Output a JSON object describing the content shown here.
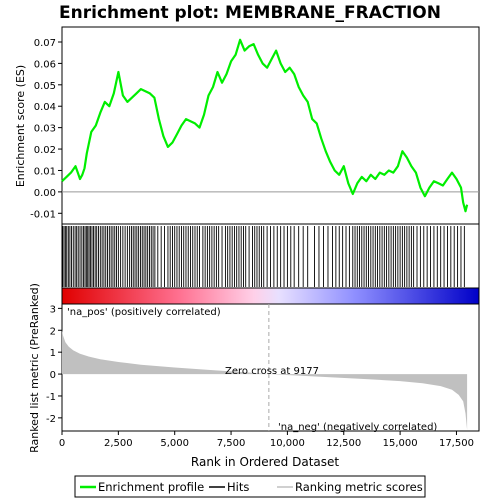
{
  "chart_data": {
    "type": "line",
    "title": "Enrichment plot: MEMBRANE_FRACTION",
    "xlabel": "Rank in Ordered Dataset",
    "xlim": [
      0,
      18500
    ],
    "x_ticks": [
      0,
      2500,
      5000,
      7500,
      10000,
      12500,
      15000,
      17500
    ],
    "x_tick_labels": [
      "0",
      "2,500",
      "5,000",
      "7,500",
      "10,000",
      "12,500",
      "15,000",
      "17,500"
    ],
    "es_panel": {
      "ylabel": "Enrichment score (ES)",
      "ylim": [
        -0.015,
        0.077
      ],
      "y_ticks": [
        -0.01,
        0.0,
        0.01,
        0.02,
        0.03,
        0.04,
        0.05,
        0.06,
        0.07
      ],
      "y_tick_labels": [
        "-0.01",
        "0.00",
        "0.01",
        "0.02",
        "0.03",
        "0.04",
        "0.05",
        "0.06",
        "0.07"
      ],
      "series": [
        {
          "name": "Enrichment profile",
          "color": "#00ee00",
          "x": [
            0,
            200,
            400,
            600,
            700,
            800,
            900,
            1000,
            1100,
            1300,
            1500,
            1700,
            1900,
            2100,
            2300,
            2500,
            2700,
            2900,
            3100,
            3300,
            3500,
            3700,
            3900,
            4100,
            4300,
            4500,
            4700,
            4900,
            5100,
            5300,
            5500,
            5700,
            5900,
            6100,
            6300,
            6500,
            6700,
            6900,
            7100,
            7300,
            7500,
            7700,
            7900,
            8100,
            8300,
            8500,
            8700,
            8900,
            9100,
            9300,
            9500,
            9700,
            9900,
            10100,
            10300,
            10500,
            10700,
            10900,
            11100,
            11300,
            11500,
            11700,
            11900,
            12100,
            12300,
            12500,
            12700,
            12900,
            13100,
            13300,
            13500,
            13700,
            13900,
            14100,
            14300,
            14500,
            14700,
            14900,
            15100,
            15300,
            15500,
            15700,
            15900,
            16100,
            16300,
            16500,
            16700,
            16900,
            17100,
            17300,
            17500,
            17700,
            17800,
            17900,
            17970
          ],
          "y": [
            0.005,
            0.007,
            0.009,
            0.012,
            0.009,
            0.006,
            0.008,
            0.011,
            0.018,
            0.028,
            0.031,
            0.037,
            0.042,
            0.04,
            0.046,
            0.056,
            0.045,
            0.042,
            0.044,
            0.046,
            0.048,
            0.047,
            0.046,
            0.044,
            0.034,
            0.026,
            0.021,
            0.023,
            0.027,
            0.031,
            0.034,
            0.033,
            0.032,
            0.03,
            0.036,
            0.045,
            0.049,
            0.056,
            0.051,
            0.055,
            0.061,
            0.064,
            0.071,
            0.066,
            0.068,
            0.069,
            0.064,
            0.06,
            0.058,
            0.062,
            0.066,
            0.06,
            0.056,
            0.058,
            0.055,
            0.049,
            0.045,
            0.042,
            0.034,
            0.032,
            0.025,
            0.019,
            0.014,
            0.01,
            0.008,
            0.012,
            0.004,
            -0.001,
            0.004,
            0.007,
            0.005,
            0.008,
            0.006,
            0.009,
            0.008,
            0.01,
            0.009,
            0.012,
            0.019,
            0.016,
            0.012,
            0.009,
            0.002,
            -0.002,
            0.002,
            0.005,
            0.004,
            0.003,
            0.006,
            0.009,
            0.006,
            0.002,
            -0.005,
            -0.009,
            -0.006
          ]
        }
      ]
    },
    "hits_panel": {
      "hit_ranks": [
        30,
        90,
        150,
        210,
        280,
        350,
        420,
        500,
        580,
        650,
        720,
        800,
        880,
        950,
        1020,
        1080,
        1140,
        1200,
        1260,
        1330,
        1400,
        1470,
        1540,
        1620,
        1700,
        1780,
        1860,
        1940,
        2020,
        2100,
        2180,
        2260,
        2340,
        2420,
        2500,
        2600,
        2700,
        2800,
        2900,
        3000,
        3080,
        3160,
        3240,
        3320,
        3400,
        3480,
        3560,
        3640,
        3720,
        3800,
        3880,
        3960,
        4040,
        4120,
        4250,
        4400,
        4550,
        4700,
        4800,
        4900,
        5000,
        5100,
        5200,
        5300,
        5400,
        5500,
        5600,
        5700,
        5800,
        5900,
        6000,
        6100,
        6250,
        6350,
        6450,
        6550,
        6650,
        6750,
        6850,
        6950,
        7100,
        7250,
        7350,
        7450,
        7550,
        7650,
        7750,
        7850,
        7950,
        8050,
        8150,
        8300,
        8450,
        8550,
        8650,
        8750,
        8850,
        8950,
        9100,
        9250,
        9400,
        9550,
        9700,
        9850,
        10000,
        10150,
        10300,
        10500,
        10700,
        10900,
        11200,
        11400,
        11600,
        11800,
        12000,
        12150,
        12300,
        12450,
        12600,
        12750,
        12900,
        13000,
        13100,
        13200,
        13300,
        13400,
        13500,
        13600,
        13700,
        13800,
        13900,
        14000,
        14100,
        14200,
        14300,
        14400,
        14500,
        14600,
        14700,
        14800,
        14900,
        15000,
        15100,
        15200,
        15300,
        15400,
        15500,
        15600,
        15750,
        15900,
        16050,
        16200,
        16350,
        16500,
        16650,
        16800,
        16950,
        17100,
        17250,
        17400,
        17550,
        17700,
        17850
      ]
    },
    "ranking_panel": {
      "ylabel": "Ranked list metric (PreRanked)",
      "ylim": [
        -2.6,
        3.2
      ],
      "y_ticks": [
        -2,
        -1,
        0,
        1,
        2,
        3
      ],
      "y_tick_labels": [
        "-2",
        "-1",
        "0",
        "1",
        "2",
        "3"
      ],
      "metric_curve": {
        "x": [
          0,
          50,
          150,
          300,
          500,
          800,
          1200,
          1700,
          2500,
          3500,
          5000,
          6500,
          8000,
          9177,
          10500,
          12000,
          13500,
          15000,
          16000,
          16800,
          17300,
          17600,
          17800,
          17900,
          17970
        ],
        "y": [
          2.0,
          1.75,
          1.45,
          1.25,
          1.08,
          0.93,
          0.8,
          0.68,
          0.55,
          0.43,
          0.3,
          0.19,
          0.09,
          0.0,
          -0.07,
          -0.15,
          -0.23,
          -0.32,
          -0.42,
          -0.55,
          -0.72,
          -0.95,
          -1.25,
          -1.8,
          -2.55
        ]
      },
      "zero_cross_rank": 9177,
      "zero_cross_label": "Zero cross at 9177",
      "pos_label": "'na_pos' (positively correlated)",
      "neg_label": "'na_neg' (negatively correlated)",
      "pos_color": "#cc0000",
      "neg_color": "#0000cc"
    },
    "legend": {
      "placement": "bottom",
      "entries": [
        {
          "label": "Enrichment profile",
          "color": "#00ee00"
        },
        {
          "label": "Hits",
          "color": "#000000"
        },
        {
          "label": "Ranking metric scores",
          "color": "#c0c0c0"
        }
      ]
    },
    "colors": {
      "profile": "#00ee00",
      "hits": "#000000",
      "metric_fill": "#c0c0c0",
      "zero_line": "#999999",
      "gradient_pos": "#ff0000",
      "gradient_neg": "#0000ff"
    }
  }
}
